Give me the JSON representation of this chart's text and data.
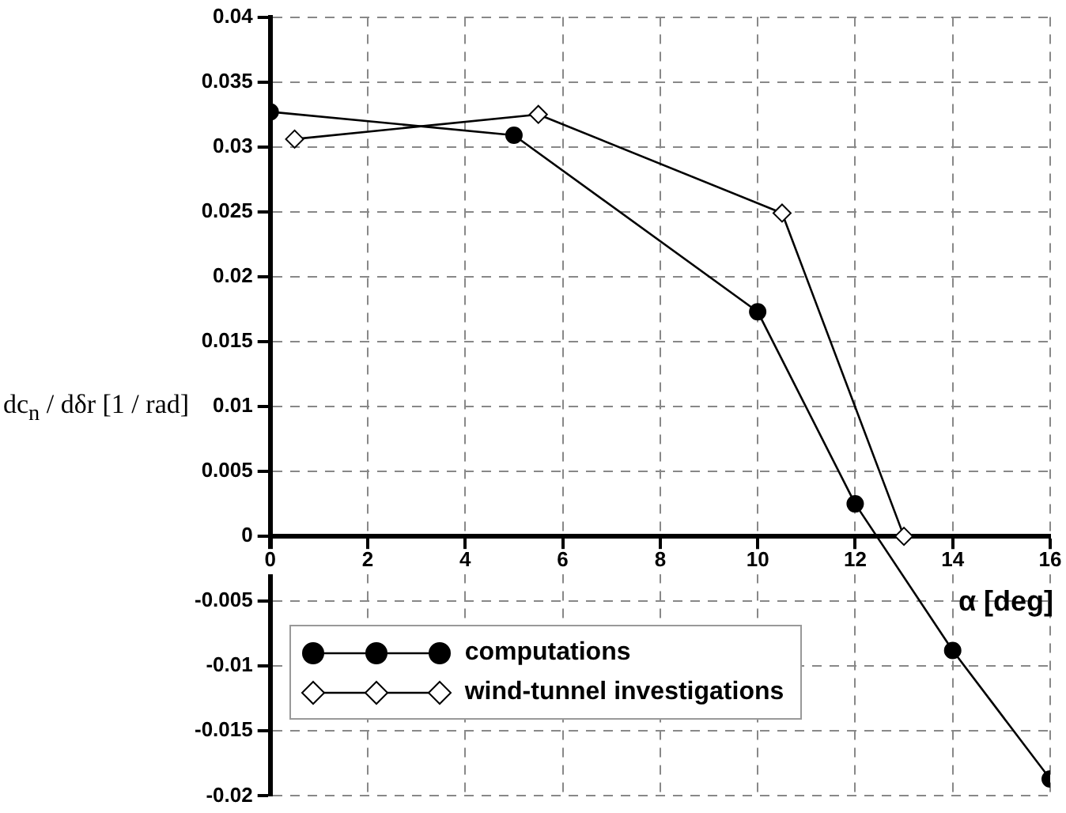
{
  "chart_data": {
    "type": "line",
    "xlabel": "α [deg]",
    "ylabel": "dc$_{n}$ / dδr [1 / rad]",
    "xlim": [
      0,
      16
    ],
    "xticks": [
      0,
      2,
      4,
      6,
      8,
      10,
      12,
      14,
      16
    ],
    "ylim": [
      -0.02,
      0.04
    ],
    "yticks": [
      -0.02,
      -0.015,
      -0.01,
      -0.005,
      0,
      0.005,
      0.01,
      0.015,
      0.02,
      0.025,
      0.03,
      0.035,
      0.04
    ],
    "grid": true,
    "legend": "bottom left",
    "line_style": "solid",
    "series": [
      {
        "name": "computations",
        "color": "#000000",
        "marker": "circle",
        "x": [
          0,
          5,
          10,
          12,
          14,
          16
        ],
        "values": [
          0.0327,
          0.0309,
          0.0173,
          0.0025,
          -0.0088,
          -0.0187
        ]
      },
      {
        "name": "wind-tunnel investigations",
        "color": "#000000",
        "marker": "diamond",
        "x": [
          0.5,
          5.5,
          10.5,
          13
        ],
        "values": [
          0.0306,
          0.0325,
          0.0249,
          0
        ]
      }
    ]
  }
}
